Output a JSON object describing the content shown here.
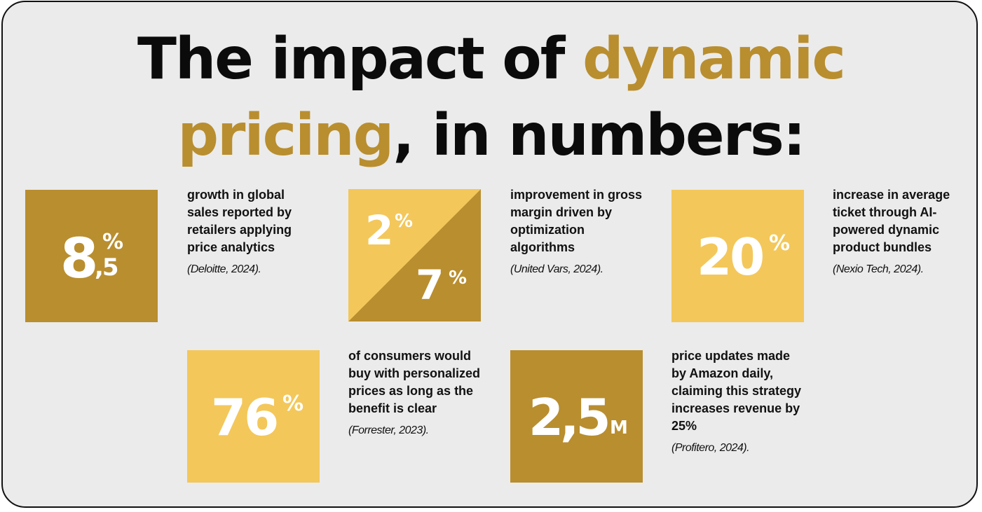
{
  "title": {
    "line1_plain": "The impact of ",
    "line1_accent": "dynamic",
    "line2_accent": "pricing",
    "line2_plain": ", in numbers:"
  },
  "colors": {
    "background": "#ebebeb",
    "dark_gold": "#b98e2f",
    "light_gold": "#f3c75a",
    "text": "#111111"
  },
  "stats": [
    {
      "value_main": "8",
      "value_sup": "%",
      "value_sub": ",5",
      "description": "growth in global sales reported by retailers applying price analytics",
      "source": "(Deloitte, 2024)."
    },
    {
      "value_top": "2",
      "value_top_sup": "%",
      "value_bottom": "7",
      "value_bottom_sup": "%",
      "description": "improvement in gross margin driven by optimization algorithms",
      "source": "(United Vars, 2024)."
    },
    {
      "value_main": "20",
      "value_sup": "%",
      "description": "increase in average ticket through AI-powered dynamic product bundles",
      "source": "(Nexio Tech, 2024)."
    },
    {
      "value_main": "76",
      "value_sup": "%",
      "description": "of consumers would buy with personalized prices as long as the benefit is clear",
      "source": "(Forrester, 2023)."
    },
    {
      "value_main": "2,5",
      "value_sup": "M",
      "description": "price updates made by Amazon daily, claiming this strategy increases revenue by 25%",
      "source": "(Profitero, 2024)."
    }
  ]
}
